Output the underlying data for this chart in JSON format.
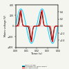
{
  "title": "",
  "xlabel": "Time (s)",
  "ylabel_left": "Mains voltage (V)",
  "ylabel_right": "Current (A)",
  "xlim": [
    0.0,
    0.04
  ],
  "ylim_left": [
    -400,
    400
  ],
  "ylim_right": [
    -0.6,
    0.6
  ],
  "yticks_left": [
    -400,
    -200,
    0,
    200,
    400
  ],
  "yticks_right": [
    -0.4,
    -0.2,
    0.0,
    0.2,
    0.4
  ],
  "xticks": [
    0.0,
    0.01,
    0.02,
    0.03,
    0.04
  ],
  "legend": [
    "Mains voltage",
    "CFL lamp current",
    "Dimmable CFL lamp current"
  ],
  "legend_colors": [
    "#00ccff",
    "#ff0000",
    "#000000"
  ],
  "background": "#f5f5f0",
  "num_points": 4000,
  "freq": 50,
  "voltage_amplitude": 325,
  "current_amplitude_cfl": 0.45,
  "current_amplitude_dim": 0.4
}
